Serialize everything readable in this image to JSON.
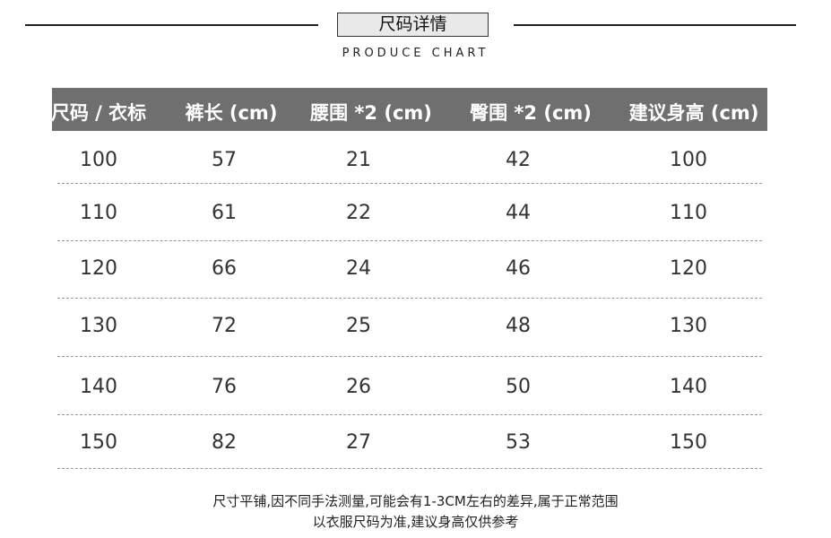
{
  "title": "尺码详情",
  "subtitle": "PRODUCE CHART",
  "table": {
    "headers": [
      "尺码 / 衣标",
      "裤长 (cm)",
      "腰围 *2 (cm)",
      "臀围 *2 (cm)",
      "建议身高 (cm)"
    ],
    "rows": [
      [
        "100",
        "57",
        "21",
        "42",
        "100"
      ],
      [
        "110",
        "61",
        "22",
        "44",
        "110"
      ],
      [
        "120",
        "66",
        "24",
        "46",
        "120"
      ],
      [
        "130",
        "72",
        "25",
        "48",
        "130"
      ],
      [
        "140",
        "76",
        "26",
        "50",
        "140"
      ],
      [
        "150",
        "82",
        "27",
        "53",
        "150"
      ]
    ]
  },
  "notes": [
    "尺寸平铺,因不同手法测量,可能会有1-3CM左右的差异,属于正常范围",
    "以衣服尺码为准,建议身高仅供参考"
  ],
  "colors": {
    "header_bg": "#6f6f6f",
    "title_box_bg": "#e9e9e9"
  }
}
